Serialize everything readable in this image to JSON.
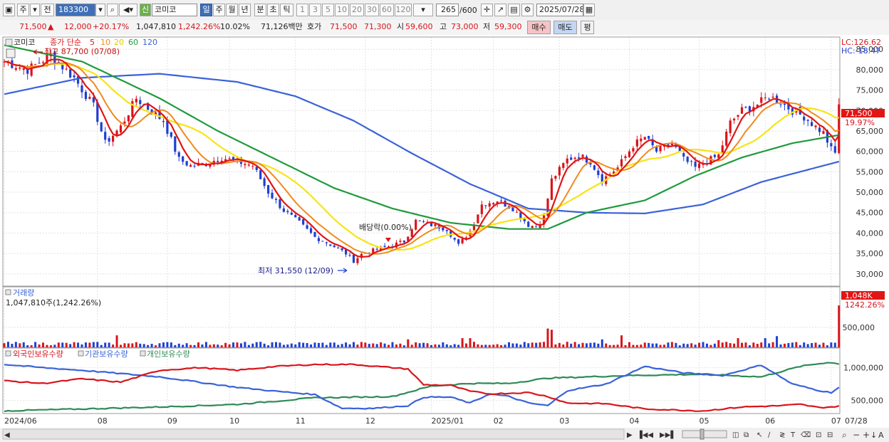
{
  "toolbar": {
    "market": "주",
    "prev": "전",
    "code": "183300",
    "badge": "신",
    "name": "코미코",
    "period_tabs": [
      "일",
      "주",
      "월",
      "년",
      "분",
      "초",
      "틱"
    ],
    "period_nums": [
      "1",
      "3",
      "5",
      "10",
      "20",
      "30",
      "60",
      "120"
    ],
    "count": "265",
    "count_total": "/600",
    "date": "2025/07/28"
  },
  "quote": {
    "price": "71,500",
    "arrow": "▲",
    "change": "12,000",
    "change_pct": "+20.17%",
    "volume": "1,047,810",
    "volume_pct": "1,242.26%",
    "turnover": "10.02%",
    "amount": "71,126백만",
    "ask_label": "호가",
    "ask1": "71,500",
    "ask2": "71,300",
    "open_label": "시",
    "open": "59,600",
    "high_label": "고",
    "high": "73,000",
    "low_label": "저",
    "low": "59,300",
    "buy": "매수",
    "sell": "매도",
    "eval": "평"
  },
  "colors": {
    "up": "#d9141b",
    "down": "#1f3fd1",
    "ma5": "#e11515",
    "ma10": "#f08a1c",
    "ma20": "#f7e414",
    "ma60": "#1f9a3c",
    "ma120": "#3a62d8",
    "foreign": "#d9141b",
    "inst": "#3a62d8",
    "indiv": "#2e8b57"
  },
  "chart_data": {
    "type": "candlestick",
    "price_panel": {
      "title": "코미코",
      "legend": [
        "종가 단순",
        "5",
        "10",
        "20",
        "60",
        "120"
      ],
      "ylim": [
        27000,
        88000
      ],
      "yticks": [
        30000,
        35000,
        40000,
        45000,
        50000,
        55000,
        60000,
        65000,
        70000,
        75000,
        80000,
        85000
      ],
      "ytick_labels": [
        "30,000",
        "35,000",
        "40,000",
        "45,000",
        "50,000",
        "55,000",
        "60,000",
        "65,000",
        "70,000",
        "75,000",
        "80,000",
        "85,000"
      ],
      "lc_label": "LC:126.62",
      "hc_label": "HC:-18.47",
      "last_price_label": "71,500",
      "last_price": 71500,
      "last_change_label": "19.97%",
      "high_annotation": "최고 87,700 (07/08)",
      "high_value": 87700,
      "low_annotation": "최저 31,550 (12/09)",
      "low_value": 31550,
      "dividend_annotation": "배당락(0.00%)",
      "close_anchors": [
        [
          0,
          82000
        ],
        [
          6,
          80000
        ],
        [
          12,
          83500
        ],
        [
          18,
          78000
        ],
        [
          23,
          71000
        ],
        [
          26,
          62000
        ],
        [
          30,
          66000
        ],
        [
          34,
          73000
        ],
        [
          37,
          70500
        ],
        [
          41,
          67500
        ],
        [
          45,
          58000
        ],
        [
          48,
          56500
        ],
        [
          52,
          57000
        ],
        [
          56,
          58500
        ],
        [
          60,
          57500
        ],
        [
          64,
          56500
        ],
        [
          68,
          50000
        ],
        [
          72,
          45500
        ],
        [
          76,
          42500
        ],
        [
          80,
          39000
        ],
        [
          84,
          37200
        ],
        [
          88,
          35000
        ],
        [
          90,
          33200
        ],
        [
          92,
          34800
        ],
        [
          96,
          36000
        ],
        [
          100,
          37000
        ],
        [
          103,
          38000
        ],
        [
          106,
          43000
        ],
        [
          110,
          42000
        ],
        [
          114,
          41000
        ],
        [
          117,
          37000
        ],
        [
          120,
          40500
        ],
        [
          123,
          47000
        ],
        [
          127,
          48000
        ],
        [
          131,
          46000
        ],
        [
          135,
          42000
        ],
        [
          137,
          41500
        ],
        [
          139,
          44000
        ],
        [
          141,
          53000
        ],
        [
          145,
          58000
        ],
        [
          148,
          59000
        ],
        [
          151,
          57500
        ],
        [
          154,
          53000
        ],
        [
          158,
          56000
        ],
        [
          162,
          61500
        ],
        [
          165,
          63500
        ],
        [
          168,
          60000
        ],
        [
          172,
          62000
        ],
        [
          175,
          58000
        ],
        [
          178,
          56000
        ],
        [
          181,
          57500
        ],
        [
          184,
          59000
        ],
        [
          187,
          67000
        ],
        [
          190,
          70000
        ],
        [
          194,
          71500
        ],
        [
          197,
          73500
        ],
        [
          200,
          72000
        ],
        [
          203,
          70000
        ],
        [
          206,
          68500
        ],
        [
          209,
          66000
        ],
        [
          211,
          64500
        ],
        [
          213,
          60500
        ],
        [
          214,
          59500
        ],
        [
          215,
          71500
        ]
      ],
      "ma120_anchors": [
        [
          0,
          74000
        ],
        [
          20,
          78000
        ],
        [
          40,
          79000
        ],
        [
          60,
          77000
        ],
        [
          75,
          73500
        ],
        [
          90,
          67500
        ],
        [
          105,
          59500
        ],
        [
          120,
          52000
        ],
        [
          135,
          46000
        ],
        [
          150,
          45000
        ],
        [
          165,
          44800
        ],
        [
          180,
          47000
        ],
        [
          195,
          52500
        ],
        [
          205,
          55000
        ],
        [
          215,
          57500
        ]
      ],
      "ma60_anchors": [
        [
          0,
          86000
        ],
        [
          20,
          82000
        ],
        [
          40,
          73000
        ],
        [
          55,
          65000
        ],
        [
          70,
          58000
        ],
        [
          85,
          51000
        ],
        [
          100,
          46000
        ],
        [
          115,
          42500
        ],
        [
          130,
          41000
        ],
        [
          140,
          41000
        ],
        [
          150,
          45000
        ],
        [
          165,
          48000
        ],
        [
          178,
          54000
        ],
        [
          190,
          58500
        ],
        [
          203,
          62000
        ],
        [
          215,
          64000
        ]
      ]
    },
    "volume_panel": {
      "title": "거래량",
      "subtitle": "1,047,810주(1,242.26%)",
      "ylim": [
        0,
        1300000
      ],
      "yticks": [
        500000
      ],
      "ytick_labels": [
        "500,000"
      ],
      "last_label": "1,048K",
      "last_pct": "1242.26%",
      "last_value": 1047810,
      "spikes": [
        [
          29,
          300000
        ],
        [
          104,
          200000
        ],
        [
          118,
          230000
        ],
        [
          120,
          230000
        ],
        [
          140,
          470000
        ],
        [
          141,
          440000
        ],
        [
          154,
          200000
        ],
        [
          159,
          300000
        ],
        [
          184,
          180000
        ],
        [
          189,
          230000
        ],
        [
          196,
          230000
        ],
        [
          199,
          280000
        ],
        [
          215,
          1047810
        ]
      ]
    },
    "holdings_panel": {
      "legend": [
        "외국인보유수량",
        "기관보유수량",
        "개인보유수량"
      ],
      "ylim": [
        300000,
        1300000
      ],
      "yticks": [
        500000,
        1000000
      ],
      "ytick_labels": [
        "500,000",
        "1,000,000"
      ],
      "foreign": [
        [
          0,
          800000
        ],
        [
          10,
          760000
        ],
        [
          20,
          830000
        ],
        [
          30,
          780000
        ],
        [
          40,
          960000
        ],
        [
          50,
          1000000
        ],
        [
          60,
          960000
        ],
        [
          70,
          1020000
        ],
        [
          80,
          1050000
        ],
        [
          90,
          1050000
        ],
        [
          100,
          1000000
        ],
        [
          104,
          980000
        ],
        [
          108,
          740000
        ],
        [
          115,
          730000
        ],
        [
          120,
          640000
        ],
        [
          125,
          600000
        ],
        [
          135,
          620000
        ],
        [
          140,
          560000
        ],
        [
          145,
          460000
        ],
        [
          155,
          450000
        ],
        [
          165,
          370000
        ],
        [
          170,
          360000
        ],
        [
          180,
          340000
        ],
        [
          190,
          400000
        ],
        [
          200,
          420000
        ],
        [
          205,
          440000
        ],
        [
          210,
          390000
        ],
        [
          215,
          410000
        ]
      ],
      "institution": [
        [
          0,
          1050000
        ],
        [
          10,
          1000000
        ],
        [
          20,
          960000
        ],
        [
          30,
          910000
        ],
        [
          40,
          860000
        ],
        [
          50,
          780000
        ],
        [
          60,
          700000
        ],
        [
          70,
          640000
        ],
        [
          80,
          590000
        ],
        [
          87,
          380000
        ],
        [
          95,
          380000
        ],
        [
          104,
          420000
        ],
        [
          108,
          550000
        ],
        [
          115,
          550000
        ],
        [
          120,
          460000
        ],
        [
          125,
          600000
        ],
        [
          130,
          560000
        ],
        [
          135,
          460000
        ],
        [
          140,
          420000
        ],
        [
          145,
          650000
        ],
        [
          155,
          750000
        ],
        [
          165,
          1020000
        ],
        [
          175,
          920000
        ],
        [
          185,
          880000
        ],
        [
          195,
          1040000
        ],
        [
          203,
          750000
        ],
        [
          210,
          650000
        ],
        [
          213,
          620000
        ],
        [
          215,
          700000
        ]
      ],
      "individual": [
        [
          0,
          340000
        ],
        [
          20,
          370000
        ],
        [
          40,
          400000
        ],
        [
          60,
          440000
        ],
        [
          80,
          540000
        ],
        [
          100,
          560000
        ],
        [
          110,
          720000
        ],
        [
          120,
          760000
        ],
        [
          130,
          760000
        ],
        [
          140,
          840000
        ],
        [
          160,
          880000
        ],
        [
          180,
          900000
        ],
        [
          195,
          860000
        ],
        [
          205,
          1020000
        ],
        [
          212,
          1080000
        ],
        [
          215,
          1060000
        ]
      ]
    },
    "x_axis": {
      "labels": [
        "2024/06",
        "08",
        "09",
        "10",
        "11",
        "12",
        "2025/01",
        "02",
        "03",
        "04",
        "05",
        "06",
        "07",
        "07/28"
      ],
      "label_index": [
        0,
        24,
        42,
        58,
        75,
        93,
        110,
        126,
        143,
        161,
        179,
        196,
        213,
        238
      ]
    }
  }
}
